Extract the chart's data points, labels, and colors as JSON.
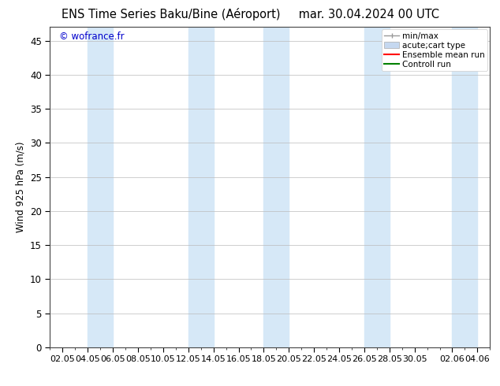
{
  "title_left": "ENS Time Series Baku/Bine (Aéroport)",
  "title_right": "mar. 30.04.2024 00 UTC",
  "ylabel": "Wind 925 hPa (m/s)",
  "watermark": "© wofrance.fr",
  "watermark_color": "#0000cc",
  "ylim": [
    0,
    47
  ],
  "yticks": [
    0,
    5,
    10,
    15,
    20,
    25,
    30,
    35,
    40,
    45
  ],
  "background_color": "#ffffff",
  "plot_bg_color": "#ffffff",
  "grid_color": "#bbbbbb",
  "shade_color": "#d6e8f7",
  "shades": [
    [
      4,
      6
    ],
    [
      12,
      14
    ],
    [
      18,
      20
    ],
    [
      26,
      28
    ],
    [
      33,
      35
    ]
  ],
  "xtick_vals": [
    2,
    4,
    6,
    8,
    10,
    12,
    14,
    16,
    18,
    20,
    22,
    24,
    26,
    28,
    30,
    33,
    35
  ],
  "xtick_labs": [
    "02.05",
    "04.05",
    "06.05",
    "08.05",
    "10.05",
    "12.05",
    "14.05",
    "16.05",
    "18.05",
    "20.05",
    "22.05",
    "24.05",
    "26.05",
    "28.05",
    "30.05",
    "02.06",
    "04.06"
  ],
  "xmin": 1,
  "xmax": 36,
  "legend_labels": [
    "min/max",
    "acute;cart type",
    "Ensemble mean run",
    "Controll run"
  ],
  "legend_colors_line": [
    "#999999",
    "#c5d8f0",
    "#ff0000",
    "#008000"
  ],
  "font_size": 8.5,
  "title_font_size": 10.5
}
